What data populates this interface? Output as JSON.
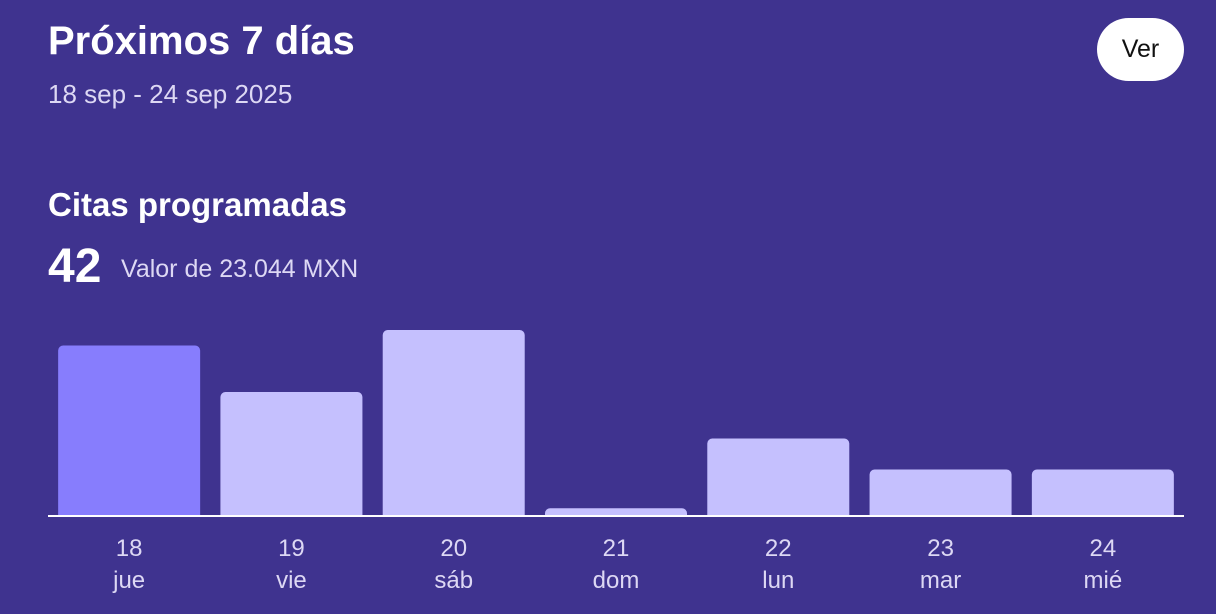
{
  "header": {
    "title": "Próximos 7 días",
    "date_range": "18 sep - 24 sep 2025",
    "view_button_label": "Ver"
  },
  "summary": {
    "section_title": "Citas programadas",
    "count": "42",
    "value_text": "Valor de 23.044 MXN"
  },
  "colors": {
    "background": "#3f338f",
    "bar_highlight": "#877dfd",
    "bar_default": "#c5c0fe",
    "baseline": "#ffffff"
  },
  "chart_data": {
    "type": "bar",
    "categories": [
      "18",
      "19",
      "20",
      "21",
      "22",
      "23",
      "24"
    ],
    "weekdays": [
      "jue",
      "vie",
      "sáb",
      "dom",
      "lun",
      "mar",
      "mié"
    ],
    "values": [
      11,
      8,
      12,
      0.5,
      5,
      3,
      3
    ],
    "highlighted_index": 0,
    "title": "",
    "xlabel": "",
    "ylabel": "",
    "ylim": [
      0,
      12
    ],
    "grid": false,
    "legend": "none"
  }
}
